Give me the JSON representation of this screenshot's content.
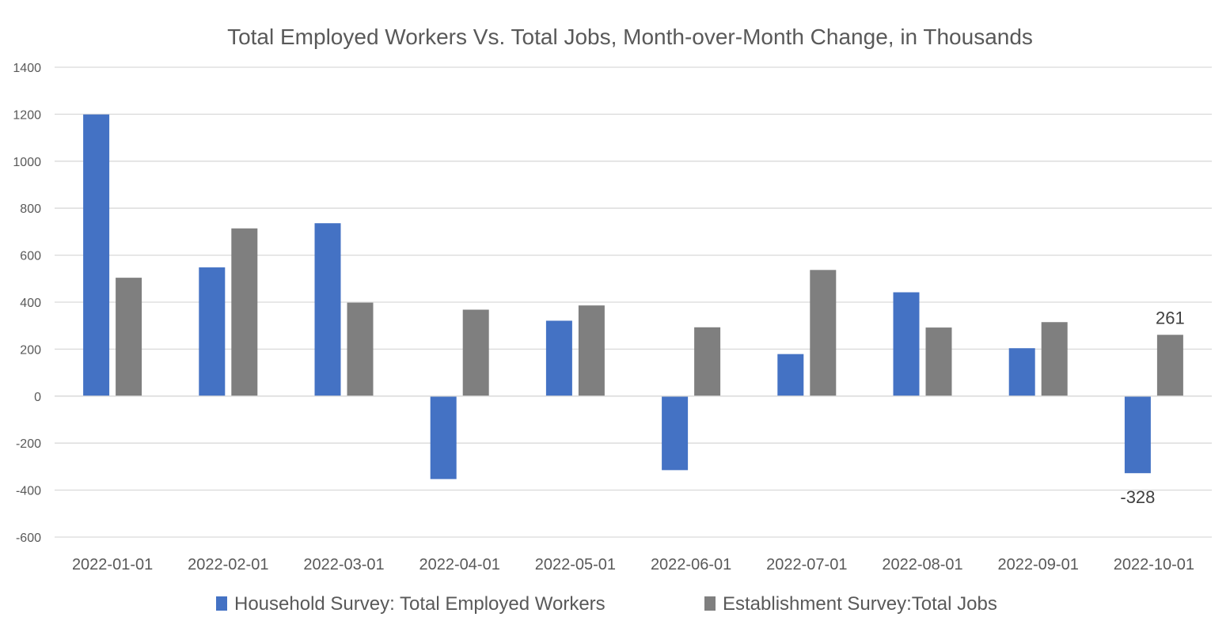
{
  "chart_data": {
    "type": "bar",
    "title": "Total Employed Workers Vs. Total Jobs, Month-over-Month Change, in Thousands",
    "xlabel": "",
    "ylabel": "",
    "ylim": [
      -600,
      1400
    ],
    "yticks": [
      1400,
      1200,
      1000,
      800,
      600,
      400,
      200,
      0,
      -200,
      -400,
      -600
    ],
    "grid": true,
    "legend_position": "bottom",
    "categories": [
      "2022-01-01",
      "2022-02-01",
      "2022-03-01",
      "2022-04-01",
      "2022-05-01",
      "2022-06-01",
      "2022-07-01",
      "2022-08-01",
      "2022-09-01",
      "2022-10-01"
    ],
    "series": [
      {
        "name": "Household Survey: Total Employed Workers",
        "color": "#4472c4",
        "values": [
          1199,
          548,
          736,
          -353,
          321,
          -315,
          179,
          442,
          204,
          -328
        ]
      },
      {
        "name": "Establishment Survey:Total Jobs",
        "color": "#7f7f7f",
        "values": [
          504,
          714,
          398,
          368,
          386,
          293,
          537,
          292,
          315,
          261
        ]
      }
    ],
    "data_labels": [
      {
        "series": 0,
        "index": 9,
        "text": "-328"
      },
      {
        "series": 1,
        "index": 9,
        "text": "261"
      }
    ]
  }
}
